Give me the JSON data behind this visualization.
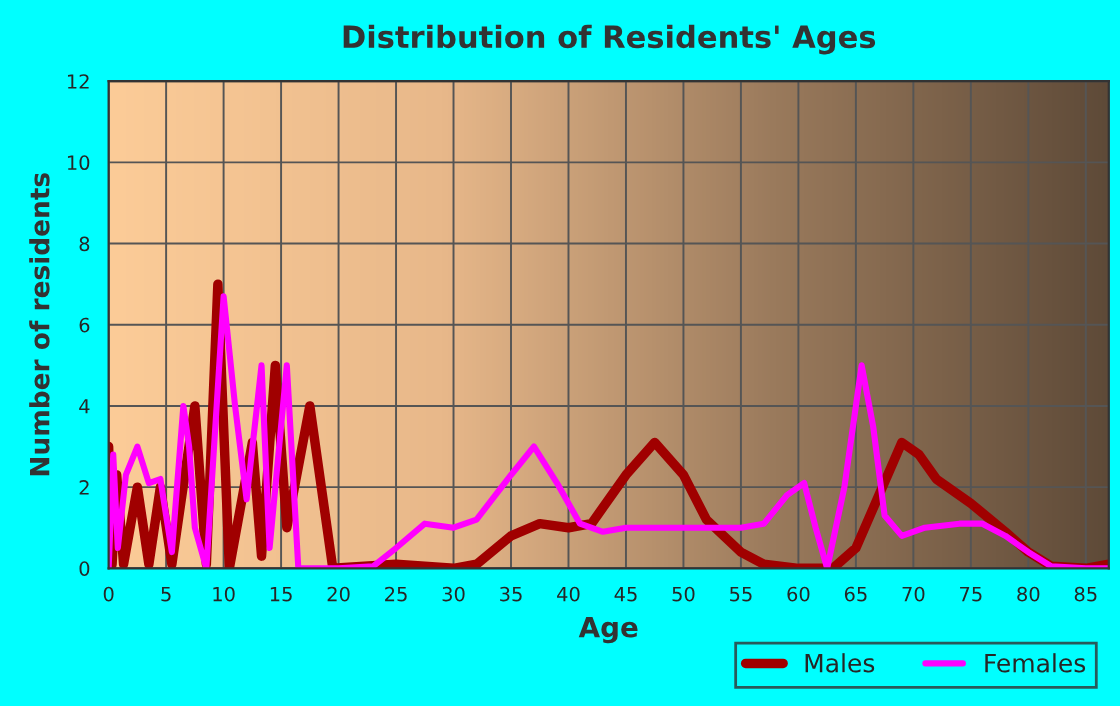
{
  "chart_data": {
    "type": "line",
    "title": "Distribution of Residents' Ages",
    "xlabel": "Age",
    "ylabel": "Number of residents",
    "xlim": [
      0,
      87
    ],
    "xticks": [
      0,
      5,
      10,
      15,
      20,
      25,
      30,
      35,
      40,
      45,
      50,
      55,
      60,
      65,
      70,
      75,
      80,
      85
    ],
    "ylim": [
      0,
      12
    ],
    "yticks": [
      0,
      2,
      4,
      6,
      8,
      10,
      12
    ],
    "grid": true,
    "legend": "bottom",
    "series": [
      {
        "name": "Males",
        "color": "#a00000",
        "x": [
          0,
          0.3,
          0.7,
          1.3,
          2.5,
          3.5,
          4.5,
          5.5,
          7.5,
          8.5,
          9.5,
          10.5,
          12.5,
          13.3,
          14.5,
          15.5,
          17.5,
          19.5,
          25,
          30,
          32,
          35,
          37.5,
          40,
          42,
          45,
          47.5,
          50,
          52,
          55,
          57,
          60,
          63,
          65,
          67,
          69,
          70.5,
          72,
          75,
          78,
          80,
          82,
          85,
          87
        ],
        "values": [
          3,
          0.1,
          2.3,
          0.1,
          2,
          0.1,
          2,
          0.1,
          4,
          0.1,
          7,
          0,
          3.1,
          0.3,
          5,
          1,
          4,
          0,
          0.1,
          0,
          0.1,
          0.8,
          1.1,
          1,
          1.1,
          2.3,
          3.1,
          2.3,
          1.2,
          0.4,
          0.1,
          0,
          0,
          0.5,
          1.8,
          3.1,
          2.8,
          2.2,
          1.6,
          0.9,
          0.4,
          0.05,
          0,
          0.1
        ]
      },
      {
        "name": "Females",
        "color": "#ff00ff",
        "x": [
          0,
          0.4,
          0.8,
          1.5,
          2.5,
          3.5,
          4.5,
          5.5,
          6.5,
          7,
          7.5,
          8.5,
          10,
          11,
          12,
          13.3,
          14,
          15.5,
          16.5,
          20,
          23,
          25,
          27.5,
          30,
          32,
          35,
          37,
          39,
          41,
          43,
          45,
          50,
          55,
          57,
          59,
          60.5,
          61.5,
          62.5,
          64,
          65.5,
          66.5,
          67.5,
          69,
          71,
          74,
          76,
          78,
          80,
          82,
          85,
          87
        ],
        "values": [
          0,
          2.8,
          0.5,
          2.3,
          3,
          2.1,
          2.2,
          0.4,
          4,
          3,
          1,
          0,
          6.7,
          4,
          1.7,
          5,
          0.5,
          5,
          0,
          0,
          0.05,
          0.5,
          1.1,
          1,
          1.2,
          2.3,
          3,
          2.1,
          1.1,
          0.9,
          1,
          1,
          1,
          1.1,
          1.8,
          2.1,
          1,
          0,
          2,
          5,
          3.5,
          1.3,
          0.8,
          1,
          1.1,
          1.1,
          0.8,
          0.4,
          0.05,
          0,
          0
        ]
      }
    ]
  }
}
